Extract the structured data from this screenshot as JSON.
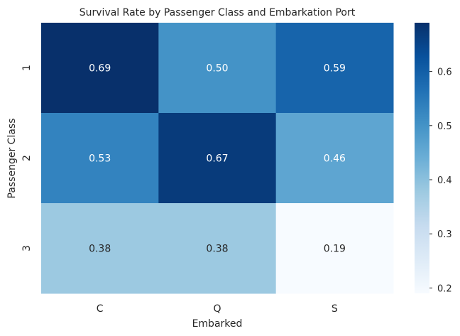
{
  "chart_data": {
    "type": "heatmap",
    "title": "Survival Rate by Passenger Class and Embarkation Port",
    "xlabel": "Embarked",
    "ylabel": "Passenger Class",
    "x_categories": [
      "C",
      "Q",
      "S"
    ],
    "y_categories": [
      "1",
      "2",
      "3"
    ],
    "values": [
      [
        0.69,
        0.5,
        0.59
      ],
      [
        0.53,
        0.67,
        0.46
      ],
      [
        0.38,
        0.38,
        0.19
      ]
    ],
    "value_labels": [
      [
        "0.69",
        "0.50",
        "0.59"
      ],
      [
        "0.53",
        "0.67",
        "0.46"
      ],
      [
        "0.38",
        "0.38",
        "0.19"
      ]
    ],
    "colormap": "Blues",
    "vmin": 0.19,
    "vmax": 0.69,
    "colorbar_ticks": [
      0.2,
      0.3,
      0.4,
      0.5,
      0.6
    ],
    "colorbar_tick_labels": [
      "0.2",
      "0.3",
      "0.4",
      "0.5",
      "0.6"
    ],
    "colors": {
      "low": "#f7fbff",
      "high": "#08306b",
      "text_dark": "#262626",
      "text_light": "#ffffff"
    }
  }
}
